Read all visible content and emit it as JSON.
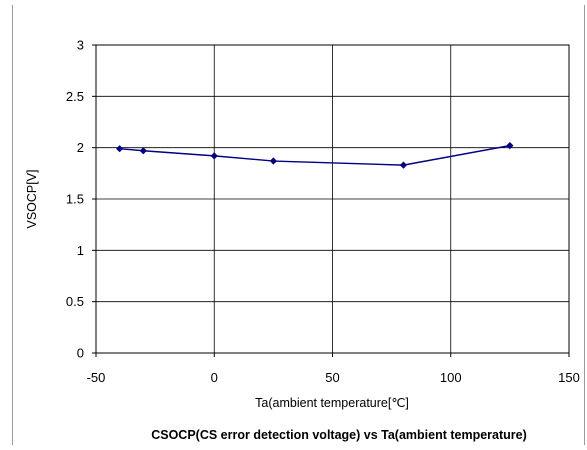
{
  "chart_data": {
    "type": "line",
    "title": "CSOCP(CS error detection voltage) vs Ta(ambient temperature)",
    "xlabel": "Ta(ambient temperature[℃]",
    "ylabel": "VSOCP[V]",
    "xlim": [
      -50,
      150
    ],
    "ylim": [
      0,
      3
    ],
    "xticks": [
      -50,
      0,
      50,
      100,
      150
    ],
    "yticks": [
      0,
      0.5,
      1,
      1.5,
      2,
      2.5,
      3
    ],
    "grid": true,
    "series": [
      {
        "color": "#000080",
        "x": [
          -40,
          -30,
          0,
          25,
          80,
          125
        ],
        "y": [
          1.99,
          1.97,
          1.92,
          1.87,
          1.83,
          2.02
        ]
      }
    ]
  }
}
